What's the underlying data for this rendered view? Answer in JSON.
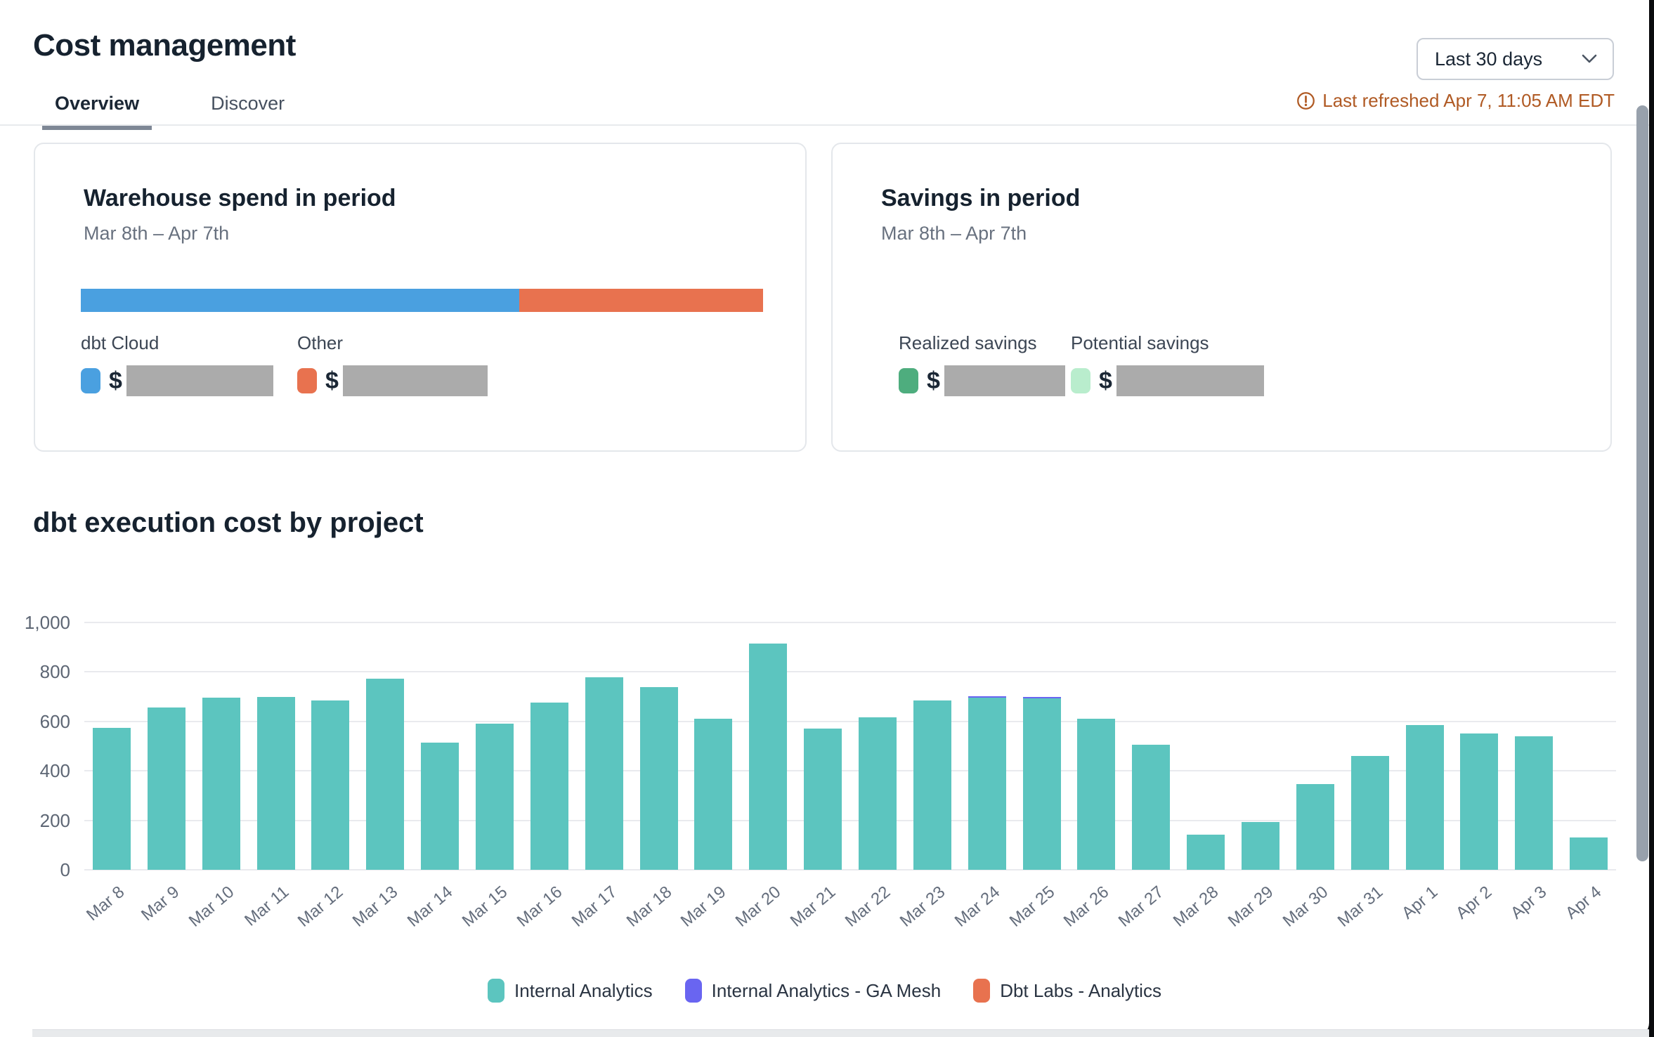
{
  "header": {
    "title": "Cost management",
    "tabs": [
      {
        "label": "Overview",
        "active": true
      },
      {
        "label": "Discover",
        "active": false
      }
    ],
    "range_selector": {
      "value": "Last 30 days"
    },
    "last_refreshed": "Last refreshed Apr 7, 11:05 AM EDT",
    "refresh_color": "#b05a24"
  },
  "cards": {
    "warehouse": {
      "title": "Warehouse spend in period",
      "period": "Mar 8th – Apr 7th",
      "currency_symbol": "$",
      "segments": [
        {
          "label": "dbt Cloud",
          "color": "#4aa0e0",
          "width_pct": "64.3%"
        },
        {
          "label": "Other",
          "color": "#e8724f",
          "width_pct": "35.7%"
        }
      ]
    },
    "savings": {
      "title": "Savings in period",
      "period": "Mar 8th – Apr 7th",
      "currency_symbol": "$",
      "items": [
        {
          "label": "Realized savings",
          "color": "#4ead7e"
        },
        {
          "label": "Potential savings",
          "color": "#b9edcd"
        }
      ]
    }
  },
  "chart_section": {
    "title": "dbt execution cost by project"
  },
  "chart_data": {
    "type": "bar",
    "stacked": true,
    "title": "dbt execution cost by project",
    "xlabel": "",
    "ylabel": "",
    "ylim": [
      0,
      1000
    ],
    "yticks": [
      0,
      200,
      400,
      600,
      800,
      1000
    ],
    "ytick_labels": [
      "0",
      "200",
      "400",
      "600",
      "800",
      "1,000"
    ],
    "grid": true,
    "legend_position": "bottom",
    "categories": [
      "Mar 8",
      "Mar 9",
      "Mar 10",
      "Mar 11",
      "Mar 12",
      "Mar 13",
      "Mar 14",
      "Mar 15",
      "Mar 16",
      "Mar 17",
      "Mar 18",
      "Mar 19",
      "Mar 20",
      "Mar 21",
      "Mar 22",
      "Mar 23",
      "Mar 24",
      "Mar 25",
      "Mar 26",
      "Mar 27",
      "Mar 28",
      "Mar 29",
      "Mar 30",
      "Mar 31",
      "Apr 1",
      "Apr 2",
      "Apr 3",
      "Apr 4"
    ],
    "series": [
      {
        "name": "Internal Analytics",
        "color": "#5cc5bf",
        "values": [
          575,
          655,
          697,
          700,
          685,
          772,
          515,
          590,
          676,
          778,
          740,
          612,
          915,
          570,
          617,
          686,
          695,
          693,
          610,
          507,
          142,
          193,
          347,
          459,
          585,
          550,
          541,
          132
        ]
      },
      {
        "name": "Internal Analytics - GA Mesh",
        "color": "#6965f1",
        "values": [
          0,
          0,
          0,
          0,
          0,
          0,
          0,
          0,
          0,
          0,
          0,
          0,
          0,
          0,
          0,
          0,
          6,
          6,
          0,
          0,
          0,
          0,
          0,
          0,
          0,
          0,
          0,
          0
        ]
      },
      {
        "name": "Dbt Labs - Analytics",
        "color": "#e8724f",
        "values": [
          0,
          0,
          0,
          0,
          0,
          0,
          0,
          0,
          0,
          0,
          0,
          0,
          0,
          0,
          0,
          0,
          0,
          0,
          0,
          0,
          0,
          0,
          0,
          0,
          0,
          0,
          0,
          0
        ]
      }
    ]
  }
}
